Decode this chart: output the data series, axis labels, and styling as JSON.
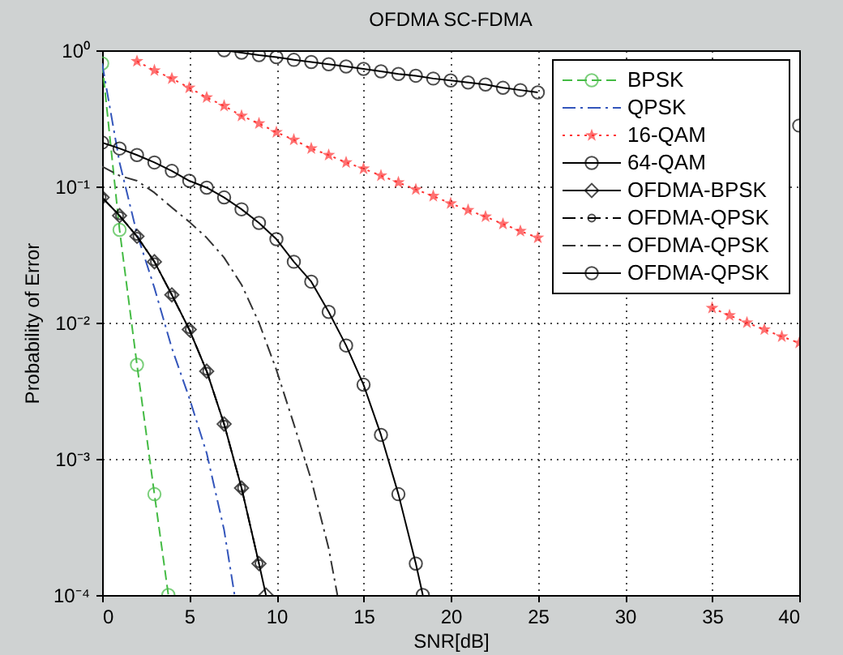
{
  "chart_data": {
    "type": "line",
    "title": "OFDMA  SC-FDMA",
    "xlabel": "SNR[dB]",
    "ylabel": "Probability of Error",
    "log": "y",
    "grid": true,
    "legend": "top right",
    "xlim": [
      0,
      40
    ],
    "xticks": [
      0,
      5,
      10,
      15,
      20,
      25,
      30,
      35,
      40
    ],
    "ylim": [
      0.0001,
      1
    ],
    "yticks": [
      {
        "value": 0.0001,
        "label": "10⁻⁴"
      },
      {
        "value": 0.001,
        "label": "10⁻³"
      },
      {
        "value": 0.01,
        "label": "10⁻²"
      },
      {
        "value": 0.1,
        "label": "10⁻¹"
      },
      {
        "value": 1,
        "label": "10⁰"
      }
    ],
    "series": [
      {
        "name": "BPSK",
        "color": "#44bb44",
        "line_style": "dashed",
        "marker": "circle",
        "x": [
          0,
          1,
          2,
          3,
          3.8
        ],
        "values": [
          0.8,
          0.048,
          0.0049,
          0.00055,
          0.0001
        ]
      },
      {
        "name": "QPSK",
        "color": "#3355bb",
        "line_style": "dashdot",
        "marker": "none",
        "x": [
          0,
          1,
          2,
          3,
          4,
          5,
          6,
          7,
          7.6
        ],
        "values": [
          0.8,
          0.15,
          0.045,
          0.018,
          0.0065,
          0.0028,
          0.0011,
          0.0003,
          0.0001
        ]
      },
      {
        "name": "16-QAM",
        "color": "#ff3333",
        "line_style": "dotted",
        "marker": "star",
        "x": [
          2,
          3,
          4,
          5,
          6,
          7,
          8,
          9,
          10,
          11,
          12,
          13,
          14,
          15,
          16,
          17,
          18,
          19,
          20,
          21,
          22,
          23,
          24,
          25,
          26,
          27,
          28,
          29,
          30,
          31,
          32,
          33,
          34,
          35,
          36,
          37,
          38,
          39,
          40
        ],
        "values": [
          0.83,
          0.71,
          0.62,
          0.53,
          0.45,
          0.39,
          0.33,
          0.29,
          0.25,
          0.22,
          0.19,
          0.17,
          0.15,
          0.135,
          0.12,
          0.107,
          0.095,
          0.085,
          0.075,
          0.067,
          0.06,
          0.053,
          0.047,
          0.042,
          null,
          null,
          null,
          null,
          null,
          null,
          null,
          null,
          null,
          0.0128,
          0.0113,
          0.01,
          0.0089,
          0.0079,
          0.0071
        ]
      },
      {
        "name": "64-QAM",
        "color": "#000000",
        "line_style": "solid",
        "marker": "circle",
        "x": [
          0,
          1,
          2,
          3,
          4,
          5,
          6,
          7,
          8,
          9,
          10,
          11,
          12,
          13,
          14,
          15,
          16,
          17,
          18,
          18.4
        ],
        "values": [
          0.21,
          0.19,
          0.17,
          0.15,
          0.13,
          0.11,
          0.098,
          0.083,
          0.068,
          0.054,
          0.041,
          0.028,
          0.02,
          0.012,
          0.0068,
          0.0035,
          0.0015,
          0.00055,
          0.00017,
          0.0001
        ]
      },
      {
        "name": "OFDMA-BPSK",
        "color": "#000000",
        "line_style": "solid",
        "marker": "diamond",
        "x": [
          0,
          1,
          2,
          3,
          4,
          5,
          6,
          7,
          8,
          9,
          9.4
        ],
        "values": [
          0.083,
          0.061,
          0.043,
          0.028,
          0.016,
          0.0089,
          0.0044,
          0.0018,
          0.00061,
          0.00017,
          0.0001
        ]
      },
      {
        "name": "OFDMA-QPSK",
        "color": "#000000",
        "line_style": "dashdot",
        "marker": "circle",
        "x": [
          0,
          1,
          2,
          3,
          4,
          5,
          6,
          7,
          8,
          9
        ],
        "values": [
          0.083,
          0.061,
          0.043,
          0.028,
          0.016,
          0.0089,
          0.0044,
          0.0018,
          0.00061,
          0.00017
        ]
      },
      {
        "name": "OFDMA-QPSK",
        "color": "#333333",
        "line_style": "dashdot",
        "marker": "none",
        "x": [
          0,
          1,
          2,
          3,
          4,
          5,
          6,
          7,
          8,
          9,
          10,
          11,
          12,
          13,
          13.5
        ],
        "values": [
          0.14,
          0.12,
          0.11,
          0.09,
          0.07,
          0.055,
          0.042,
          0.03,
          0.019,
          0.01,
          0.0045,
          0.0018,
          0.0007,
          0.00022,
          0.0001
        ]
      },
      {
        "name": "OFDMA-QPSK",
        "color": "#000000",
        "line_style": "solid",
        "marker": "circle",
        "x": [
          7,
          8,
          9,
          10,
          11,
          12,
          13,
          14,
          15,
          16,
          17,
          18,
          19,
          20,
          21,
          22,
          23,
          24,
          25,
          26,
          27,
          28,
          29,
          30,
          31,
          32,
          33,
          34,
          35,
          36,
          37,
          38,
          39,
          40
        ],
        "values": [
          1.0,
          0.96,
          0.92,
          0.89,
          0.85,
          0.82,
          0.79,
          0.76,
          0.73,
          0.7,
          0.67,
          0.65,
          0.62,
          0.6,
          0.58,
          0.56,
          0.53,
          0.51,
          0.49,
          null,
          null,
          null,
          null,
          null,
          null,
          null,
          null,
          null,
          null,
          null,
          null,
          null,
          null,
          0.28
        ]
      }
    ]
  }
}
